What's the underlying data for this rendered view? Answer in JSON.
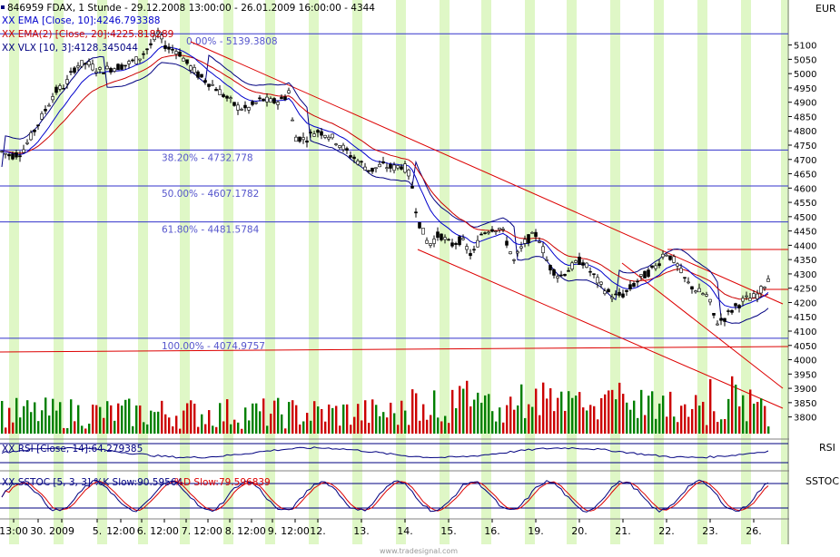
{
  "header": {
    "symbol_line": "846959  FDAX, 1 Stunde - 29.12.2008 13:00:00 - 26.01.2009 16:00:00 - 4344",
    "ema_line": "XX EMA [Close, 10]:4246.793388",
    "ema2_line": "XX EMA(2) [Close, 20]:4225.818289",
    "vlx_line": "XX VLX [10, 3]:4128.345044"
  },
  "currency": "EUR",
  "panes": {
    "rsi_label": "RSI",
    "rsi_legend": "XX RSI [Close, 14]:64.279385",
    "sstoc_label": "SSTOC",
    "sstoc_legend_k": "XX SSTOC [5, 3, 3] %K Slow:90.59564",
    "sstoc_legend_d": "%D Slow:79.596839"
  },
  "watermark": "www.tradesignal.com",
  "colors": {
    "price_up": "#008000",
    "price_down": "#cc0000",
    "ema10": "#0000cc",
    "ema20": "#cc0000",
    "vlx": "#000080",
    "fib_line": "#3333cc",
    "channel": "#dd0000",
    "session_band": "#dff7c6"
  },
  "chart_data": {
    "type": "candlestick",
    "ylim": [
      3750,
      5180
    ],
    "y_ticks": [
      3800,
      3850,
      3900,
      3950,
      4000,
      4050,
      4100,
      4150,
      4200,
      4250,
      4300,
      4350,
      4400,
      4450,
      4500,
      4550,
      4600,
      4650,
      4700,
      4750,
      4800,
      4850,
      4900,
      4950,
      5000,
      5050,
      5100
    ],
    "x_tick_labels": [
      "13:00",
      "30.",
      "2009",
      "5.",
      "12:00",
      "6.",
      "12:00",
      "7.",
      "12:00",
      "8.",
      "12:00",
      "9.",
      "12:00",
      "12.",
      "13.",
      "14.",
      "15.",
      "16.",
      "19.",
      "20.",
      "21.",
      "22.",
      "23.",
      "26."
    ],
    "fib_levels": [
      {
        "label": "0.00% - 5139.3808",
        "value": 5139.38
      },
      {
        "label": "38.20% - 4732.778",
        "value": 4732.78
      },
      {
        "label": "50.00% - 4607.1782",
        "value": 4607.18
      },
      {
        "label": "61.80% - 4481.5784",
        "value": 4481.58
      },
      {
        "label": "100.00% - 4074.9757",
        "value": 4074.98
      }
    ],
    "price_path": [
      [
        0,
        4730
      ],
      [
        12,
        4712
      ],
      [
        24,
        4725
      ],
      [
        36,
        4790
      ],
      [
        48,
        4860
      ],
      [
        60,
        4935
      ],
      [
        72,
        4960
      ],
      [
        84,
        5030
      ],
      [
        96,
        5035
      ],
      [
        110,
        5010
      ],
      [
        124,
        5020
      ],
      [
        138,
        5030
      ],
      [
        152,
        5050
      ],
      [
        166,
        5100
      ],
      [
        174,
        5140
      ],
      [
        184,
        5090
      ],
      [
        196,
        5080
      ],
      [
        206,
        5035
      ],
      [
        220,
        4990
      ],
      [
        234,
        4960
      ],
      [
        248,
        4920
      ],
      [
        260,
        4885
      ],
      [
        272,
        4875
      ],
      [
        288,
        4910
      ],
      [
        300,
        4900
      ],
      [
        312,
        4910
      ],
      [
        318,
        4940
      ],
      [
        324,
        4780
      ],
      [
        336,
        4770
      ],
      [
        348,
        4800
      ],
      [
        360,
        4790
      ],
      [
        372,
        4760
      ],
      [
        384,
        4720
      ],
      [
        396,
        4690
      ],
      [
        408,
        4660
      ],
      [
        420,
        4680
      ],
      [
        432,
        4670
      ],
      [
        444,
        4680
      ],
      [
        452,
        4640
      ],
      [
        460,
        4490
      ],
      [
        472,
        4400
      ],
      [
        484,
        4440
      ],
      [
        496,
        4400
      ],
      [
        508,
        4420
      ],
      [
        520,
        4360
      ],
      [
        530,
        4440
      ],
      [
        540,
        4460
      ],
      [
        552,
        4460
      ],
      [
        566,
        4345
      ],
      [
        580,
        4420
      ],
      [
        592,
        4440
      ],
      [
        604,
        4330
      ],
      [
        616,
        4290
      ],
      [
        628,
        4320
      ],
      [
        640,
        4350
      ],
      [
        652,
        4300
      ],
      [
        664,
        4250
      ],
      [
        676,
        4220
      ],
      [
        688,
        4230
      ],
      [
        700,
        4270
      ],
      [
        712,
        4300
      ],
      [
        724,
        4330
      ],
      [
        732,
        4380
      ],
      [
        744,
        4340
      ],
      [
        756,
        4270
      ],
      [
        768,
        4240
      ],
      [
        780,
        4220
      ],
      [
        788,
        4130
      ],
      [
        796,
        4140
      ],
      [
        808,
        4180
      ],
      [
        820,
        4210
      ],
      [
        832,
        4220
      ],
      [
        840,
        4250
      ],
      [
        848,
        4300
      ]
    ],
    "ema10_last": 4246.79,
    "ema20_last": 4225.82,
    "vlx_last": 4128.35,
    "rsi_last": 64.28,
    "stoch_k_last": 90.6,
    "stoch_d_last": 79.6
  }
}
